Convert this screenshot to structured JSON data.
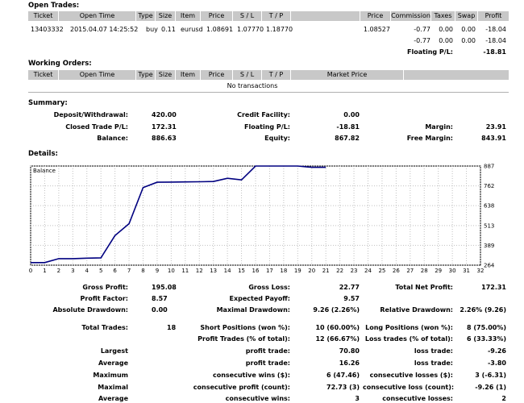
{
  "open_trades": {
    "title": "Open Trades:",
    "headers": [
      "Ticket",
      "Open Time",
      "Type",
      "Size",
      "Item",
      "Price",
      "S / L",
      "T / P",
      "Price",
      "Commission",
      "Taxes",
      "Swap",
      "Profit"
    ],
    "row": {
      "ticket": "13403332",
      "open_time": "2015.04.07 14:25:52",
      "type": "buy",
      "size": "0.11",
      "item": "eurusd",
      "price": "1.08691",
      "sl": "1.07770",
      "tp": "1.18770",
      "close_price": "1.08527",
      "commission": "-0.77",
      "taxes": "0.00",
      "swap": "0.00",
      "profit": "-18.04"
    },
    "totals": {
      "commission": "-0.77",
      "taxes": "0.00",
      "swap": "0.00",
      "profit": "-18.04"
    },
    "floating_label": "Floating P/L:",
    "floating_value": "-18.81"
  },
  "working_orders": {
    "title": "Working Orders:",
    "headers": [
      "Ticket",
      "Open Time",
      "Type",
      "Size",
      "Item",
      "Price",
      "S / L",
      "T / P",
      "Market Price"
    ],
    "empty_text": "No transactions"
  },
  "summary": {
    "title": "Summary:",
    "deposit_label": "Deposit/Withdrawal:",
    "deposit_value": "420.00",
    "credit_label": "Credit Facility:",
    "credit_value": "0.00",
    "closed_label": "Closed Trade P/L:",
    "closed_value": "172.31",
    "floating_label": "Floating P/L:",
    "floating_value": "-18.81",
    "margin_label": "Margin:",
    "margin_value": "23.91",
    "balance_label": "Balance:",
    "balance_value": "886.63",
    "equity_label": "Equity:",
    "equity_value": "867.82",
    "free_margin_label": "Free Margin:",
    "free_margin_value": "843.91"
  },
  "details": {
    "title": "Details:"
  },
  "chart_data": {
    "type": "line",
    "title": "Balance",
    "xlabel": "",
    "ylabel": "",
    "x_ticks": [
      "0",
      "1",
      "2",
      "3",
      "4",
      "5",
      "6",
      "7",
      "8",
      "9",
      "10",
      "11",
      "12",
      "13",
      "14",
      "15",
      "16",
      "17",
      "18",
      "19",
      "20",
      "21",
      "22",
      "23",
      "24",
      "25",
      "26",
      "27",
      "28",
      "29",
      "30",
      "31",
      "32"
    ],
    "y_ticks": [
      "887",
      "762",
      "638",
      "513",
      "389",
      "264"
    ],
    "xlim": [
      0,
      32
    ],
    "ylim": [
      264,
      887
    ],
    "grid": true,
    "line_color": "#000080",
    "series": [
      {
        "x": [
          0,
          1,
          2,
          3,
          4,
          5,
          6,
          7,
          8,
          9,
          10,
          11,
          12,
          13,
          14,
          15,
          16,
          17,
          18,
          19,
          20,
          21
        ],
        "y": [
          280,
          280,
          305,
          305,
          308,
          310,
          450,
          525,
          752,
          785,
          786,
          787,
          788,
          790,
          810,
          800,
          887,
          887,
          887,
          887,
          879,
          879
        ]
      }
    ]
  },
  "stats": {
    "gross_profit_label": "Gross Profit:",
    "gross_profit_value": "195.08",
    "gross_loss_label": "Gross Loss:",
    "gross_loss_value": "22.77",
    "total_net_profit_label": "Total Net Profit:",
    "total_net_profit_value": "172.31",
    "profit_factor_label": "Profit Factor:",
    "profit_factor_value": "8.57",
    "expected_payoff_label": "Expected Payoff:",
    "expected_payoff_value": "9.57",
    "absolute_drawdown_label": "Absolute Drawdown:",
    "absolute_drawdown_value": "0.00",
    "maximal_drawdown_label": "Maximal Drawdown:",
    "maximal_drawdown_value": "9.26 (2.26%)",
    "relative_drawdown_label": "Relative Drawdown:",
    "relative_drawdown_value": "2.26% (9.26)",
    "total_trades_label": "Total Trades:",
    "total_trades_value": "18",
    "short_positions_label": "Short Positions (won %):",
    "short_positions_value": "10 (60.00%)",
    "long_positions_label": "Long Positions (won %):",
    "long_positions_value": "8 (75.00%)",
    "profit_trades_label": "Profit Trades (% of total):",
    "profit_trades_value": "12 (66.67%)",
    "loss_trades_label": "Loss trades (% of total):",
    "loss_trades_value": "6 (33.33%)",
    "largest_label": "Largest",
    "largest_profit_label": "profit trade:",
    "largest_profit_value": "70.80",
    "largest_loss_label": "loss trade:",
    "largest_loss_value": "-9.26",
    "average_label": "Average",
    "average_profit_label": "profit trade:",
    "average_profit_value": "16.26",
    "average_loss_label": "loss trade:",
    "average_loss_value": "-3.80",
    "maximum_label": "Maximum",
    "max_wins_label": "consecutive wins ($):",
    "max_wins_value": "6 (47.46)",
    "max_losses_label": "consecutive losses ($):",
    "max_losses_value": "3 (-6.31)",
    "maximal_label": "Maximal",
    "maximal_profit_label": "consecutive profit (count):",
    "maximal_profit_value": "72.73 (3)",
    "maximal_loss_label": "consecutive loss (count):",
    "maximal_loss_value": "-9.26 (1)",
    "average2_label": "Average",
    "avg_wins_label": "consecutive wins:",
    "avg_wins_value": "3",
    "avg_losses_label": "consecutive losses:",
    "avg_losses_value": "2"
  }
}
